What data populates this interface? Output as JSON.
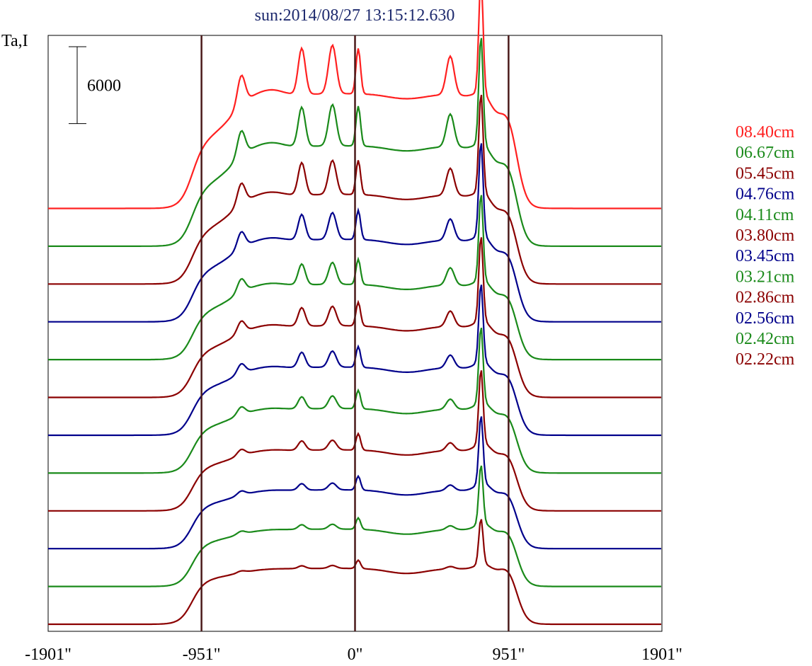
{
  "chart_data": {
    "type": "line",
    "title": "sun:2014/08/27 13:15:12.630",
    "ylabel": "Ta,I",
    "scale_bar_label": "6000",
    "scale_bar_value": 6000,
    "x_ticks": [
      {
        "value": -1901,
        "label": "-1901\""
      },
      {
        "value": -951,
        "label": "-951\""
      },
      {
        "value": 0,
        "label": "0\""
      },
      {
        "value": 951,
        "label": "951\""
      },
      {
        "value": 1901,
        "label": "1901\""
      }
    ],
    "vertical_reference_lines": [
      -951,
      0,
      951
    ],
    "xlim": [
      -1901,
      1901
    ],
    "offset_between_series": 2950,
    "series": [
      {
        "name": "08.40cm",
        "color": "#ff2020",
        "base": 33000,
        "amp": 1.6,
        "limb": 0.55,
        "peaks": 1.0,
        "src": 1.05
      },
      {
        "name": "06.67cm",
        "color": "#1a8a1a",
        "base": 30050,
        "amp": 1.4,
        "limb": 0.55,
        "peaks": 0.85,
        "src": 1.0
      },
      {
        "name": "05.45cm",
        "color": "#8b0000",
        "base": 27100,
        "amp": 1.25,
        "limb": 0.55,
        "peaks": 0.7,
        "src": 0.95
      },
      {
        "name": "04.76cm",
        "color": "#00008b",
        "base": 24150,
        "amp": 1.15,
        "limb": 0.58,
        "peaks": 0.55,
        "src": 0.95
      },
      {
        "name": "04.11cm",
        "color": "#1a8a1a",
        "base": 21200,
        "amp": 1.05,
        "limb": 0.6,
        "peaks": 0.45,
        "src": 0.9
      },
      {
        "name": "03.80cm",
        "color": "#8b0000",
        "base": 18250,
        "amp": 1.0,
        "limb": 0.62,
        "peaks": 0.4,
        "src": 0.9
      },
      {
        "name": "03.45cm",
        "color": "#00008b",
        "base": 15300,
        "amp": 0.95,
        "limb": 0.65,
        "peaks": 0.33,
        "src": 0.85
      },
      {
        "name": "03.21cm",
        "color": "#1a8a1a",
        "base": 12350,
        "amp": 0.9,
        "limb": 0.67,
        "peaks": 0.26,
        "src": 0.85
      },
      {
        "name": "02.86cm",
        "color": "#8b0000",
        "base": 9400,
        "amp": 0.85,
        "limb": 0.7,
        "peaks": 0.2,
        "src": 0.85
      },
      {
        "name": "02.56cm",
        "color": "#00008b",
        "base": 6450,
        "amp": 0.82,
        "limb": 0.72,
        "peaks": 0.14,
        "src": 0.8
      },
      {
        "name": "02.42cm",
        "color": "#1a8a1a",
        "base": 3500,
        "amp": 0.8,
        "limb": 0.74,
        "peaks": 0.1,
        "src": 0.7
      },
      {
        "name": "02.22cm",
        "color": "#8b0000",
        "base": 550,
        "amp": 0.78,
        "limb": 0.78,
        "peaks": 0.06,
        "src": 0.55
      }
    ],
    "ylim": [
      0,
      46500
    ]
  }
}
